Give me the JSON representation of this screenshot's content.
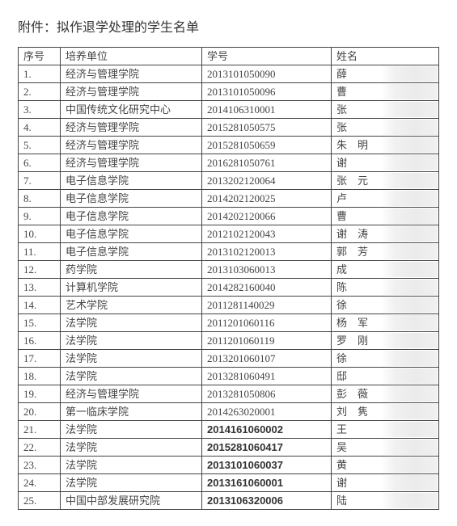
{
  "title": "附件：拟作退学处理的学生名单",
  "columns": [
    "序号",
    "培养单位",
    "学号",
    "姓名"
  ],
  "rows": [
    {
      "seq": "1.",
      "unit": "经济与管理学院",
      "sid": "2013101050090",
      "name": "薛",
      "bold": false
    },
    {
      "seq": "2.",
      "unit": "经济与管理学院",
      "sid": "2013101050096",
      "name": "曹",
      "bold": false
    },
    {
      "seq": "3.",
      "unit": "中国传统文化研究中心",
      "sid": "2014106310001",
      "name": "张",
      "bold": false
    },
    {
      "seq": "4.",
      "unit": "经济与管理学院",
      "sid": "2015281050575",
      "name": "张",
      "bold": false
    },
    {
      "seq": "5.",
      "unit": "经济与管理学院",
      "sid": "2015281050659",
      "name": "朱　明",
      "bold": false
    },
    {
      "seq": "6.",
      "unit": "经济与管理学院",
      "sid": "2016281050761",
      "name": "谢",
      "bold": false
    },
    {
      "seq": "7.",
      "unit": "电子信息学院",
      "sid": "2013202120064",
      "name": "张　元",
      "bold": false
    },
    {
      "seq": "8.",
      "unit": "电子信息学院",
      "sid": "2014202120025",
      "name": "卢",
      "bold": false
    },
    {
      "seq": "9.",
      "unit": "电子信息学院",
      "sid": "2014202120066",
      "name": "曹",
      "bold": false
    },
    {
      "seq": "10.",
      "unit": "电子信息学院",
      "sid": "2012102120043",
      "name": "谢　涛",
      "bold": false
    },
    {
      "seq": "11.",
      "unit": "电子信息学院",
      "sid": "2013102120013",
      "name": "郭　芳",
      "bold": false
    },
    {
      "seq": "12.",
      "unit": "药学院",
      "sid": "2013103060013",
      "name": "成",
      "bold": false
    },
    {
      "seq": "13.",
      "unit": "计算机学院",
      "sid": "2014282160040",
      "name": "陈",
      "bold": false
    },
    {
      "seq": "14.",
      "unit": "艺术学院",
      "sid": "2011281140029",
      "name": "徐",
      "bold": false
    },
    {
      "seq": "15.",
      "unit": "法学院",
      "sid": "2011201060116",
      "name": "杨　军",
      "bold": false
    },
    {
      "seq": "16.",
      "unit": "法学院",
      "sid": "2011201060119",
      "name": "罗　刚",
      "bold": false
    },
    {
      "seq": "17.",
      "unit": "法学院",
      "sid": "2013201060107",
      "name": "徐",
      "bold": false
    },
    {
      "seq": "18.",
      "unit": "法学院",
      "sid": "2013281060491",
      "name": "邸",
      "bold": false
    },
    {
      "seq": "19.",
      "unit": "经济与管理学院",
      "sid": "2013281050806",
      "name": "彭　薇",
      "bold": false
    },
    {
      "seq": "20.",
      "unit": "第一临床学院",
      "sid": "2014263020001",
      "name": "刘　隽",
      "bold": false
    },
    {
      "seq": "21.",
      "unit": "法学院",
      "sid": "2014161060002",
      "name": "王",
      "bold": true
    },
    {
      "seq": "22.",
      "unit": "法学院",
      "sid": "2015281060417",
      "name": "吴",
      "bold": true
    },
    {
      "seq": "23.",
      "unit": "法学院",
      "sid": "2013101060037",
      "name": "黄",
      "bold": true
    },
    {
      "seq": "24.",
      "unit": "法学院",
      "sid": "2013161060001",
      "name": "谢",
      "bold": true
    },
    {
      "seq": "25.",
      "unit": "中国中部发展研究院",
      "sid": "2013106320006",
      "name": "陆",
      "bold": true
    }
  ]
}
